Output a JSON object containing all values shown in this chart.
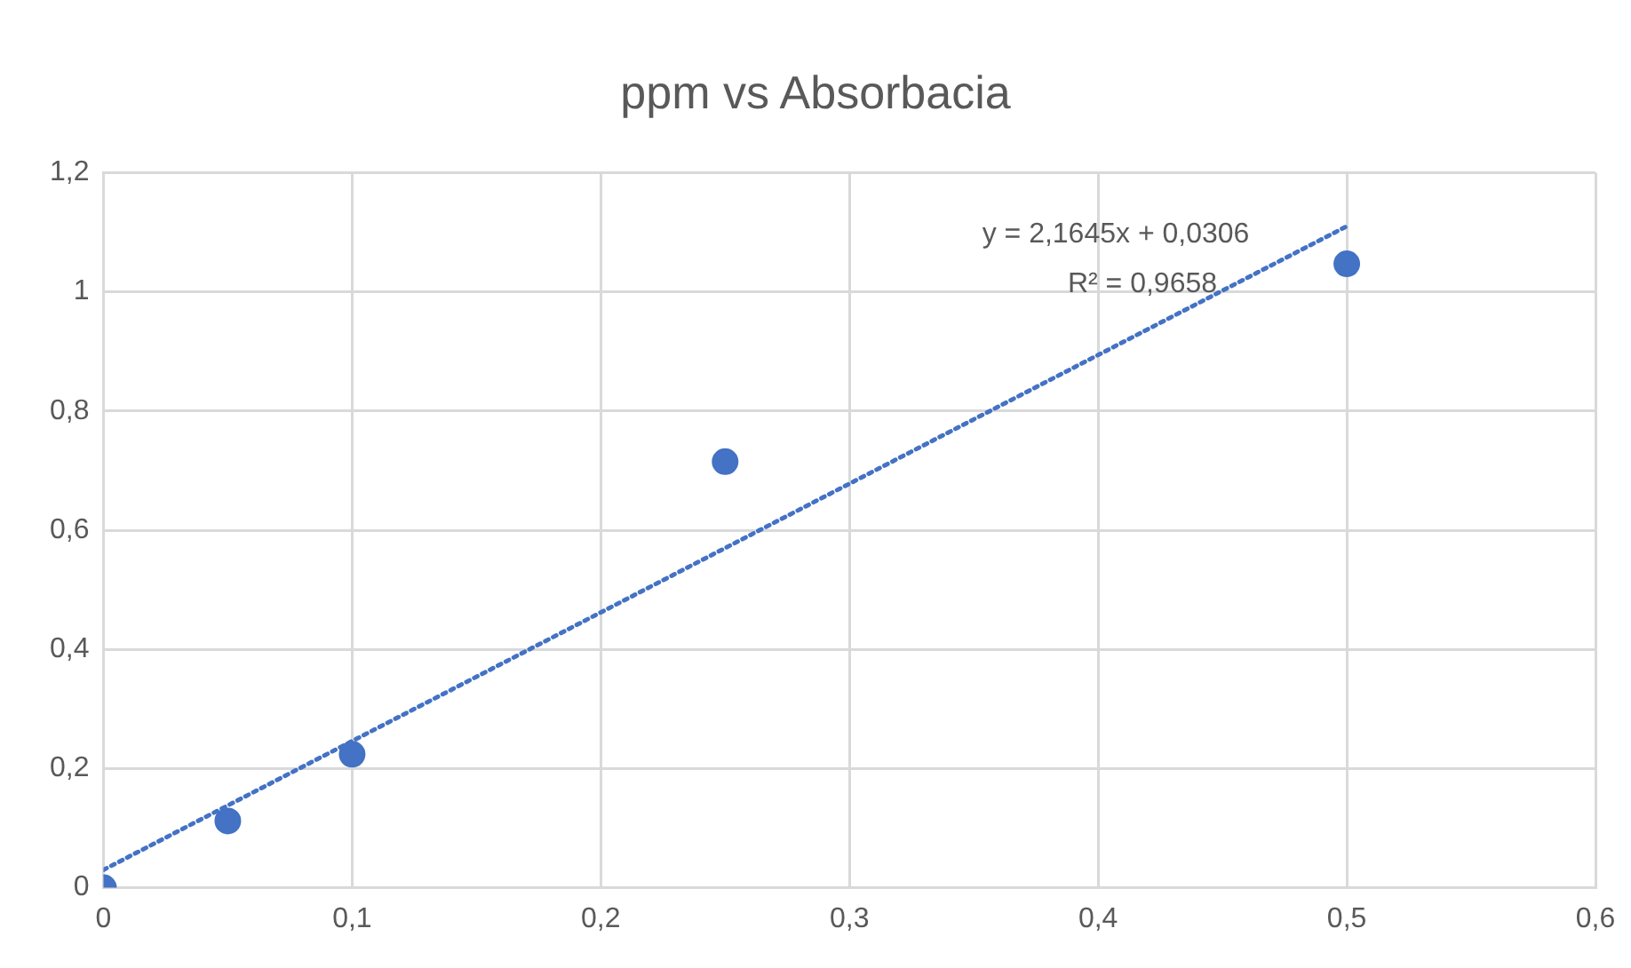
{
  "chart_data": {
    "type": "scatter",
    "title": "ppm vs Absorbacia",
    "series": [
      {
        "type": "scatter",
        "color": "#4472c4",
        "x": [
          0,
          0.05,
          0.1,
          0.25,
          0.5
        ],
        "values": [
          0,
          0.112,
          0.224,
          0.715,
          1.047
        ],
        "marker": "circle"
      },
      {
        "type": "line",
        "color": "#4472c4",
        "x": [
          0,
          0.5
        ],
        "values": [
          0.03,
          1.11
        ],
        "line_style": "dotted",
        "marker": "none"
      }
    ],
    "xlim": [
      0,
      0.6
    ],
    "xticks": [
      {
        "value": 0,
        "label": "0"
      },
      {
        "value": 0.1,
        "label": "0,1"
      },
      {
        "value": 0.2,
        "label": "0,2"
      },
      {
        "value": 0.3,
        "label": "0,3"
      },
      {
        "value": 0.4,
        "label": "0,4"
      },
      {
        "value": 0.5,
        "label": "0,5"
      },
      {
        "value": 0.6,
        "label": "0,6"
      }
    ],
    "ylim": [
      0,
      1.2
    ],
    "yticks": [
      {
        "value": 0,
        "label": "0"
      },
      {
        "value": 0.2,
        "label": "0,2"
      },
      {
        "value": 0.4,
        "label": "0,4"
      },
      {
        "value": 0.6,
        "label": "0,6"
      },
      {
        "value": 0.8,
        "label": "0,8"
      },
      {
        "value": 1,
        "label": "1"
      },
      {
        "value": 1.2,
        "label": "1,2"
      }
    ],
    "grid": true,
    "annotations": [
      "y = 2,1645x + 0,0306",
      "R² = 0,9658"
    ]
  }
}
